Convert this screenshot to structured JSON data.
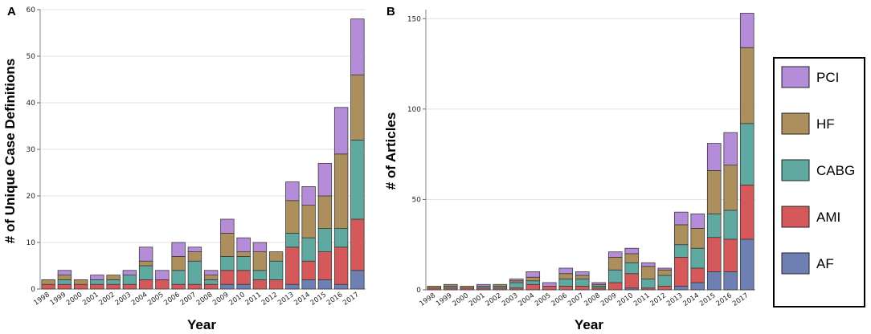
{
  "chart_data": [
    {
      "type": "bar",
      "stacked": true,
      "panel": "A",
      "xlabel": "Year",
      "ylabel": "# of Unique Case Definitions",
      "ylim": [
        0,
        60
      ],
      "yticks": [
        0,
        10,
        20,
        30,
        40,
        50,
        60
      ],
      "grid": true,
      "categories": [
        "1998",
        "1999",
        "2000",
        "2001",
        "2002",
        "2003",
        "2004",
        "2005",
        "2006",
        "2007",
        "2008",
        "2009",
        "2010",
        "2011",
        "2012",
        "2013",
        "2014",
        "2015",
        "2016",
        "2017"
      ],
      "series": [
        {
          "name": "AF",
          "values": [
            0,
            0,
            0,
            0,
            0,
            0,
            0,
            0,
            0,
            0,
            0,
            1,
            1,
            0,
            0,
            1,
            2,
            2,
            1,
            4
          ]
        },
        {
          "name": "AMI",
          "values": [
            1,
            1,
            1,
            1,
            1,
            1,
            2,
            2,
            1,
            1,
            1,
            3,
            3,
            2,
            2,
            8,
            4,
            6,
            8,
            11
          ]
        },
        {
          "name": "CABG",
          "values": [
            0,
            1,
            0,
            1,
            1,
            2,
            3,
            0,
            3,
            5,
            1,
            3,
            3,
            2,
            4,
            3,
            5,
            5,
            4,
            17
          ]
        },
        {
          "name": "HF",
          "values": [
            1,
            1,
            1,
            0,
            1,
            0,
            1,
            0,
            3,
            2,
            1,
            5,
            1,
            4,
            2,
            7,
            7,
            7,
            16,
            14
          ]
        },
        {
          "name": "PCI",
          "values": [
            0,
            1,
            0,
            1,
            0,
            1,
            3,
            2,
            3,
            1,
            1,
            3,
            3,
            2,
            0,
            4,
            4,
            7,
            10,
            12
          ]
        }
      ]
    },
    {
      "type": "bar",
      "stacked": true,
      "panel": "B",
      "xlabel": "Year",
      "ylabel": "# of Articles",
      "ylim": [
        0,
        155
      ],
      "yticks": [
        0,
        50,
        100,
        150
      ],
      "grid": true,
      "categories": [
        "1998",
        "1999",
        "2000",
        "2001",
        "2002",
        "2003",
        "2004",
        "2005",
        "2006",
        "2007",
        "2008",
        "2009",
        "2010",
        "2011",
        "2012",
        "2013",
        "2014",
        "2015",
        "2016",
        "2017"
      ],
      "series": [
        {
          "name": "AF",
          "values": [
            0,
            0,
            0,
            0,
            0,
            0,
            0,
            0,
            0,
            0,
            0,
            0,
            1,
            0,
            0,
            2,
            4,
            10,
            10,
            28
          ]
        },
        {
          "name": "AMI",
          "values": [
            1,
            1,
            1,
            1,
            1,
            1,
            3,
            2,
            2,
            2,
            1,
            4,
            8,
            1,
            2,
            16,
            8,
            19,
            18,
            30
          ]
        },
        {
          "name": "CABG",
          "values": [
            0,
            1,
            0,
            1,
            1,
            3,
            2,
            0,
            4,
            4,
            1,
            7,
            6,
            5,
            6,
            7,
            11,
            13,
            16,
            34
          ]
        },
        {
          "name": "HF",
          "values": [
            1,
            1,
            1,
            0,
            1,
            1,
            2,
            0,
            3,
            2,
            1,
            7,
            5,
            7,
            3,
            11,
            11,
            24,
            25,
            42
          ]
        },
        {
          "name": "PCI",
          "values": [
            0,
            0,
            0,
            1,
            0,
            1,
            3,
            2,
            3,
            2,
            1,
            3,
            3,
            2,
            1,
            7,
            8,
            15,
            18,
            19
          ]
        }
      ]
    }
  ],
  "legend": [
    {
      "label": "PCI",
      "color": "#b58cd8"
    },
    {
      "label": "HF",
      "color": "#ac8f5c"
    },
    {
      "label": "CABG",
      "color": "#5fa9a0"
    },
    {
      "label": "AMI",
      "color": "#d5585b"
    },
    {
      "label": "AF",
      "color": "#6d7fb3"
    }
  ]
}
